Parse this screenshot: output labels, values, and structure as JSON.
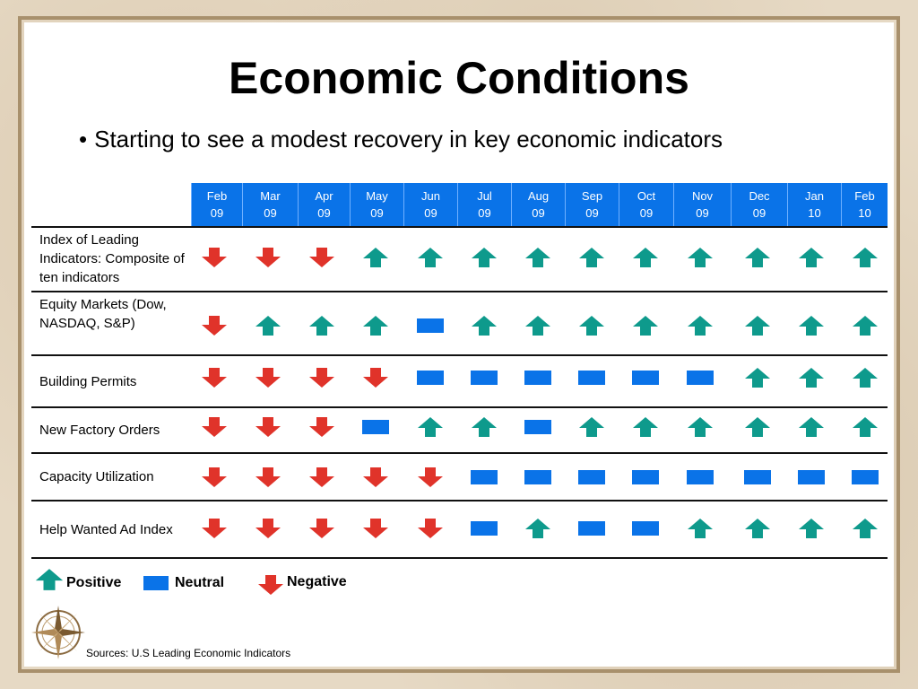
{
  "title": "Economic Conditions",
  "subtitle": "Starting to see a modest recovery in key economic indicators",
  "bullet": "•",
  "months": [
    {
      "m": "Feb",
      "y": "09"
    },
    {
      "m": "Mar",
      "y": "09"
    },
    {
      "m": "Apr",
      "y": "09"
    },
    {
      "m": "May",
      "y": "09"
    },
    {
      "m": "Jun",
      "y": "09"
    },
    {
      "m": "Jul",
      "y": "09"
    },
    {
      "m": "Aug",
      "y": "09"
    },
    {
      "m": "Sep",
      "y": "09"
    },
    {
      "m": "Oct",
      "y": "09"
    },
    {
      "m": "Nov",
      "y": "09"
    },
    {
      "m": "Dec",
      "y": "09"
    },
    {
      "m": "Jan",
      "y": "10"
    },
    {
      "m": "Feb",
      "y": "10"
    }
  ],
  "rows": [
    {
      "label": "Index of Leading Indicators: Composite of ten indicators",
      "values": [
        "negative",
        "negative",
        "negative",
        "positive",
        "positive",
        "positive",
        "positive",
        "positive",
        "positive",
        "positive",
        "positive",
        "positive",
        "positive"
      ]
    },
    {
      "label": "Equity Markets (Dow, NASDAQ, S&P)",
      "values": [
        "negative",
        "positive",
        "positive",
        "positive",
        "neutral",
        "positive",
        "positive",
        "positive",
        "positive",
        "positive",
        "positive",
        "positive",
        "positive"
      ]
    },
    {
      "label": "Building Permits",
      "values": [
        "negative",
        "negative",
        "negative",
        "negative",
        "neutral",
        "neutral",
        "neutral",
        "neutral",
        "neutral",
        "neutral",
        "positive",
        "positive",
        "positive"
      ]
    },
    {
      "label": "New Factory Orders",
      "values": [
        "negative",
        "negative",
        "negative",
        "neutral",
        "positive",
        "positive",
        "neutral",
        "positive",
        "positive",
        "positive",
        "positive",
        "positive",
        "positive"
      ]
    },
    {
      "label": "Capacity Utilization",
      "values": [
        "negative",
        "negative",
        "negative",
        "negative",
        "negative",
        "neutral",
        "neutral",
        "neutral",
        "neutral",
        "neutral",
        "neutral",
        "neutral",
        "neutral"
      ]
    },
    {
      "label": "Help Wanted Ad Index",
      "values": [
        "negative",
        "negative",
        "negative",
        "negative",
        "negative",
        "neutral",
        "positive",
        "neutral",
        "neutral",
        "positive",
        "positive",
        "positive",
        "positive"
      ]
    }
  ],
  "legend": {
    "positive_label": "Positive",
    "neutral_label": "Neutral",
    "negative_label": "Negative"
  },
  "colors": {
    "positive": "#0e9a8c",
    "neutral": "#0a73e8",
    "negative": "#e0332a",
    "header_bg": "#0a73e8"
  },
  "source": "Sources: U.S Leading Economic Indicators"
}
